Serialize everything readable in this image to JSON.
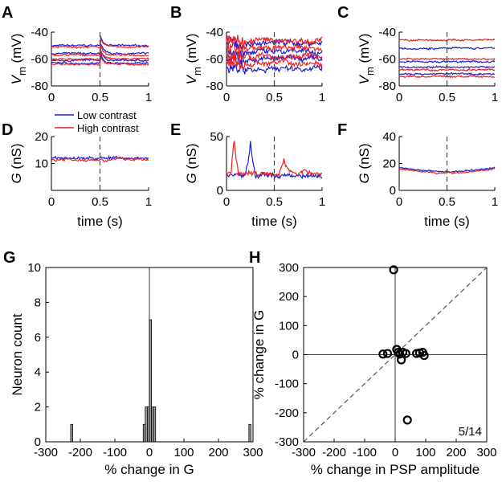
{
  "chart_data": [
    {
      "panel": "A",
      "type": "line",
      "ylabel": "V_m (mV)",
      "ylabel_main": "V",
      "ylabel_sub": "m",
      "ylabel_unit": "(mV)",
      "xlim": [
        0,
        1
      ],
      "ylim": [
        -80,
        -40
      ],
      "xticks": [
        "0",
        "0.5",
        "1"
      ],
      "yticks": [
        "-40",
        "-60",
        "-80"
      ],
      "stimulus_time": 0.5,
      "series": [
        {
          "name": "Low contrast",
          "color": "#1f1fd0",
          "levels": [
            -50,
            -56,
            -61,
            -63
          ]
        },
        {
          "name": "High contrast",
          "color": "#ee2222",
          "levels": [
            -51,
            -57,
            -60,
            -64
          ]
        }
      ]
    },
    {
      "panel": "B",
      "type": "line",
      "ylabel": "V_m (mV)",
      "ylabel_main": "V",
      "ylabel_sub": "m",
      "ylabel_unit": "(mV)",
      "xlim": [
        0,
        1
      ],
      "ylim": [
        -80,
        -40
      ],
      "xticks": [
        "0",
        "0.5",
        "1"
      ],
      "yticks": [
        "-40",
        "-60",
        "-80"
      ],
      "stimulus_time": 0.5,
      "series": [
        {
          "name": "Low contrast",
          "color": "#1f1fd0",
          "levels": [
            -48,
            -55,
            -60,
            -67
          ]
        },
        {
          "name": "High contrast",
          "color": "#ee2222",
          "levels": [
            -46,
            -52,
            -58,
            -63
          ]
        }
      ]
    },
    {
      "panel": "C",
      "type": "line",
      "ylabel": "V_m (mV)",
      "ylabel_main": "V",
      "ylabel_sub": "m",
      "ylabel_unit": "(mV)",
      "xlim": [
        0,
        1
      ],
      "ylim": [
        -80,
        -40
      ],
      "xticks": [
        "0",
        "0.5",
        "1"
      ],
      "yticks": [
        "-40",
        "-60",
        "-80"
      ],
      "stimulus_time": 0.5,
      "series": [
        {
          "name": "Low contrast",
          "color": "#1f1fd0",
          "levels": [
            -52,
            -62,
            -66,
            -71
          ]
        },
        {
          "name": "High contrast",
          "color": "#ee2222",
          "levels": [
            -46,
            -60,
            -68,
            -73
          ]
        }
      ]
    },
    {
      "panel": "D",
      "type": "line",
      "ylabel": "G (nS)",
      "ylabel_main": "G",
      "ylabel_unit": "(nS)",
      "xlabel": "time (s)",
      "xlim": [
        0,
        1
      ],
      "ylim": [
        0,
        20
      ],
      "xticks": [
        "0",
        "0.5",
        "1"
      ],
      "yticks": [
        "10",
        "20"
      ],
      "stimulus_time": 0.5,
      "series": [
        {
          "name": "Low contrast",
          "color": "#1f1fd0",
          "levels": [
            12
          ]
        },
        {
          "name": "High contrast",
          "color": "#ee2222",
          "levels": [
            11.5
          ]
        }
      ]
    },
    {
      "panel": "E",
      "type": "line",
      "ylabel": "G (nS)",
      "ylabel_main": "G",
      "ylabel_unit": "(nS)",
      "xlabel": "time (s)",
      "xlim": [
        0,
        1
      ],
      "ylim": [
        0,
        50
      ],
      "xticks": [
        "0",
        "0.5",
        "1"
      ],
      "yticks": [
        "0",
        "50"
      ],
      "stimulus_time": 0.5,
      "series": [
        {
          "name": "Low contrast",
          "color": "#1f1fd0",
          "levels": [
            14
          ]
        },
        {
          "name": "High contrast",
          "color": "#ee2222",
          "levels": [
            16
          ]
        }
      ]
    },
    {
      "panel": "F",
      "type": "line",
      "ylabel": "G (nS)",
      "ylabel_main": "G",
      "ylabel_unit": "(nS)",
      "xlabel": "time (s)",
      "xlim": [
        0,
        1
      ],
      "ylim": [
        0,
        40
      ],
      "xticks": [
        "0",
        "0.5",
        "1"
      ],
      "yticks": [
        "0",
        "20",
        "40"
      ],
      "stimulus_time": 0.5,
      "series": [
        {
          "name": "Low contrast",
          "color": "#1f1fd0",
          "levels": [
            17
          ]
        },
        {
          "name": "High contrast",
          "color": "#ee2222",
          "levels": [
            16
          ]
        }
      ]
    },
    {
      "panel": "G",
      "type": "bar",
      "title": "",
      "xlabel": "% change in G",
      "ylabel": "Neuron count",
      "xlim": [
        -300,
        300
      ],
      "ylim": [
        0,
        10
      ],
      "xticks": [
        "-300",
        "-200",
        "-100",
        "0",
        "100",
        "200",
        "300"
      ],
      "yticks": [
        "0",
        "2",
        "4",
        "6",
        "8",
        "10"
      ],
      "bin_width": 6,
      "bins": [
        -225,
        -15,
        -9,
        -3,
        3,
        9,
        15,
        291
      ],
      "values": [
        1,
        1,
        2,
        2,
        7,
        2,
        2,
        1
      ]
    },
    {
      "panel": "H",
      "type": "scatter",
      "xlabel": "% change in PSP amplitude",
      "ylabel": "% change in G",
      "xlim": [
        -300,
        300
      ],
      "ylim": [
        -300,
        300
      ],
      "xticks": [
        "-300",
        "-200",
        "-100",
        "0",
        "100",
        "200",
        "300"
      ],
      "yticks": [
        "-300",
        "-200",
        "-100",
        "0",
        "100",
        "200",
        "300"
      ],
      "annotation": "5/14",
      "x": [
        -5,
        -40,
        -25,
        5,
        10,
        20,
        35,
        15,
        25,
        70,
        80,
        90,
        95,
        40
      ],
      "y": [
        292,
        2,
        4,
        18,
        8,
        -18,
        4,
        2,
        8,
        4,
        6,
        8,
        -3,
        -225
      ]
    }
  ],
  "legend": {
    "low": "Low contrast",
    "high": "High contrast",
    "low_color": "#1f1fd0",
    "high_color": "#ee2222"
  }
}
